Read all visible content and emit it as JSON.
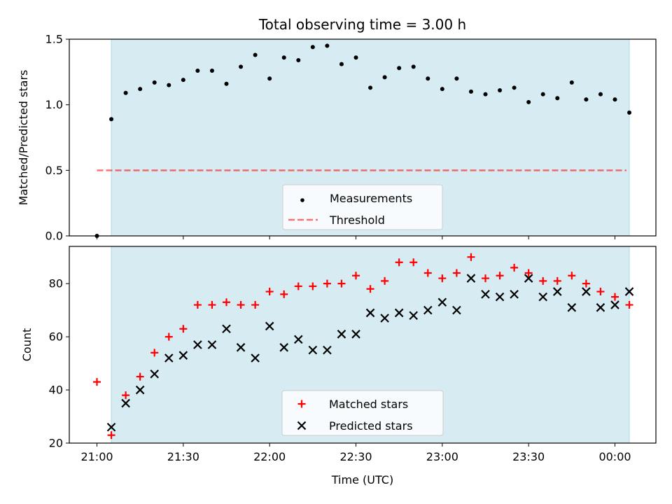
{
  "chart_data": {
    "title": "Total observing time = 3.00 h",
    "xlabel": "Time (UTC)",
    "x_ticks": [
      "21:00",
      "21:30",
      "22:00",
      "22:30",
      "23:00",
      "23:30",
      "00:00"
    ],
    "colors": {
      "band": "#add8e6",
      "measurement": "#000000",
      "threshold": "#ff0000",
      "matched": "#ff0000",
      "predicted": "#000000"
    },
    "shaded_band": {
      "start": "21:05",
      "end": "00:05"
    },
    "panels": [
      {
        "type": "scatter",
        "ylabel": "Matched/Predicted stars",
        "ylim": [
          0,
          1.5
        ],
        "yticks": [
          "0.0",
          "0.5",
          "1.0",
          "1.5"
        ],
        "legend_location": "lower-center",
        "series": [
          {
            "name": "Measurements",
            "marker": "dot",
            "points": [
              [
                "21:00",
                0.0
              ],
              [
                "21:05",
                0.89
              ],
              [
                "21:10",
                1.09
              ],
              [
                "21:15",
                1.12
              ],
              [
                "21:20",
                1.17
              ],
              [
                "21:25",
                1.15
              ],
              [
                "21:30",
                1.19
              ],
              [
                "21:35",
                1.26
              ],
              [
                "21:40",
                1.26
              ],
              [
                "21:45",
                1.16
              ],
              [
                "21:50",
                1.29
              ],
              [
                "21:55",
                1.38
              ],
              [
                "22:00",
                1.2
              ],
              [
                "22:05",
                1.36
              ],
              [
                "22:10",
                1.34
              ],
              [
                "22:15",
                1.44
              ],
              [
                "22:20",
                1.45
              ],
              [
                "22:25",
                1.31
              ],
              [
                "22:30",
                1.36
              ],
              [
                "22:35",
                1.13
              ],
              [
                "22:40",
                1.21
              ],
              [
                "22:45",
                1.28
              ],
              [
                "22:50",
                1.29
              ],
              [
                "22:55",
                1.2
              ],
              [
                "23:00",
                1.12
              ],
              [
                "23:05",
                1.2
              ],
              [
                "23:10",
                1.1
              ],
              [
                "23:15",
                1.08
              ],
              [
                "23:20",
                1.11
              ],
              [
                "23:25",
                1.13
              ],
              [
                "23:30",
                1.02
              ],
              [
                "23:35",
                1.08
              ],
              [
                "23:40",
                1.05
              ],
              [
                "23:45",
                1.17
              ],
              [
                "23:50",
                1.04
              ],
              [
                "23:55",
                1.08
              ],
              [
                "00:00",
                1.04
              ],
              [
                "00:05",
                0.94
              ]
            ]
          },
          {
            "name": "Threshold",
            "marker": "dashed-line",
            "points": [
              [
                "21:00",
                0.5
              ],
              [
                "00:04",
                0.5
              ]
            ]
          }
        ]
      },
      {
        "type": "scatter",
        "ylabel": "Count",
        "ylim": [
          20,
          94
        ],
        "yticks": [
          "20",
          "40",
          "60",
          "80"
        ],
        "legend_location": "lower-center",
        "series": [
          {
            "name": "Matched stars",
            "marker": "plus",
            "points": [
              [
                "21:00",
                43
              ],
              [
                "21:05",
                23
              ],
              [
                "21:10",
                38
              ],
              [
                "21:15",
                45
              ],
              [
                "21:20",
                54
              ],
              [
                "21:25",
                60
              ],
              [
                "21:30",
                63
              ],
              [
                "21:35",
                72
              ],
              [
                "21:40",
                72
              ],
              [
                "21:45",
                73
              ],
              [
                "21:50",
                72
              ],
              [
                "21:55",
                72
              ],
              [
                "22:00",
                77
              ],
              [
                "22:05",
                76
              ],
              [
                "22:10",
                79
              ],
              [
                "22:15",
                79
              ],
              [
                "22:20",
                80
              ],
              [
                "22:25",
                80
              ],
              [
                "22:30",
                83
              ],
              [
                "22:35",
                78
              ],
              [
                "22:40",
                81
              ],
              [
                "22:45",
                88
              ],
              [
                "22:50",
                88
              ],
              [
                "22:55",
                84
              ],
              [
                "23:00",
                82
              ],
              [
                "23:05",
                84
              ],
              [
                "23:10",
                90
              ],
              [
                "23:15",
                82
              ],
              [
                "23:20",
                83
              ],
              [
                "23:25",
                86
              ],
              [
                "23:30",
                84
              ],
              [
                "23:35",
                81
              ],
              [
                "23:40",
                81
              ],
              [
                "23:45",
                83
              ],
              [
                "23:50",
                80
              ],
              [
                "23:55",
                77
              ],
              [
                "00:00",
                75
              ],
              [
                "00:05",
                72
              ]
            ]
          },
          {
            "name": "Predicted stars",
            "marker": "x",
            "points": [
              [
                "21:05",
                26
              ],
              [
                "21:10",
                35
              ],
              [
                "21:15",
                40
              ],
              [
                "21:20",
                46
              ],
              [
                "21:25",
                52
              ],
              [
                "21:30",
                53
              ],
              [
                "21:35",
                57
              ],
              [
                "21:40",
                57
              ],
              [
                "21:45",
                63
              ],
              [
                "21:50",
                56
              ],
              [
                "21:55",
                52
              ],
              [
                "22:00",
                64
              ],
              [
                "22:05",
                56
              ],
              [
                "22:10",
                59
              ],
              [
                "22:15",
                55
              ],
              [
                "22:20",
                55
              ],
              [
                "22:25",
                61
              ],
              [
                "22:30",
                61
              ],
              [
                "22:35",
                69
              ],
              [
                "22:40",
                67
              ],
              [
                "22:45",
                69
              ],
              [
                "22:50",
                68
              ],
              [
                "22:55",
                70
              ],
              [
                "23:00",
                73
              ],
              [
                "23:05",
                70
              ],
              [
                "23:10",
                82
              ],
              [
                "23:15",
                76
              ],
              [
                "23:20",
                75
              ],
              [
                "23:25",
                76
              ],
              [
                "23:30",
                82
              ],
              [
                "23:35",
                75
              ],
              [
                "23:40",
                77
              ],
              [
                "23:45",
                71
              ],
              [
                "23:50",
                77
              ],
              [
                "23:55",
                71
              ],
              [
                "00:00",
                72
              ],
              [
                "00:05",
                77
              ]
            ]
          }
        ]
      }
    ]
  }
}
